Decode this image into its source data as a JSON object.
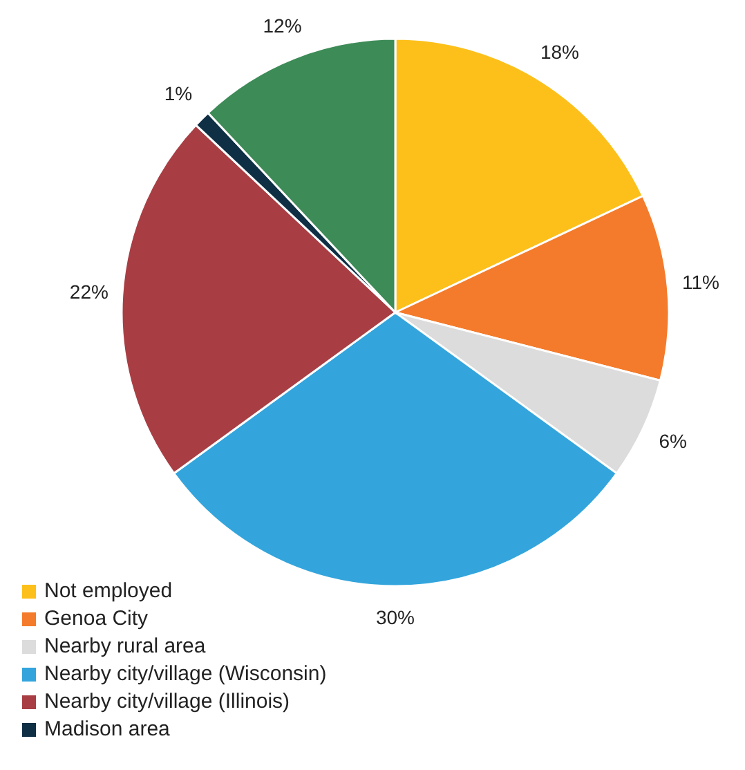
{
  "chart_data": {
    "type": "pie",
    "categories": [
      "Not employed",
      "Genoa City",
      "Nearby rural area",
      "Nearby city/village (Wisconsin)",
      "Nearby city/village (Illinois)",
      "Madison area",
      null
    ],
    "values": [
      18,
      11,
      6,
      30,
      22,
      1,
      12
    ],
    "colors": [
      "#fdc01a",
      "#f47b2b",
      "#dcdcdc",
      "#33a5dc",
      "#a83e43",
      "#0f2f45",
      "#3d8b57"
    ],
    "value_labels": [
      "18%",
      "11%",
      "6%",
      "30%",
      "22%",
      "1%",
      "12%"
    ],
    "legend": "bottom left"
  }
}
